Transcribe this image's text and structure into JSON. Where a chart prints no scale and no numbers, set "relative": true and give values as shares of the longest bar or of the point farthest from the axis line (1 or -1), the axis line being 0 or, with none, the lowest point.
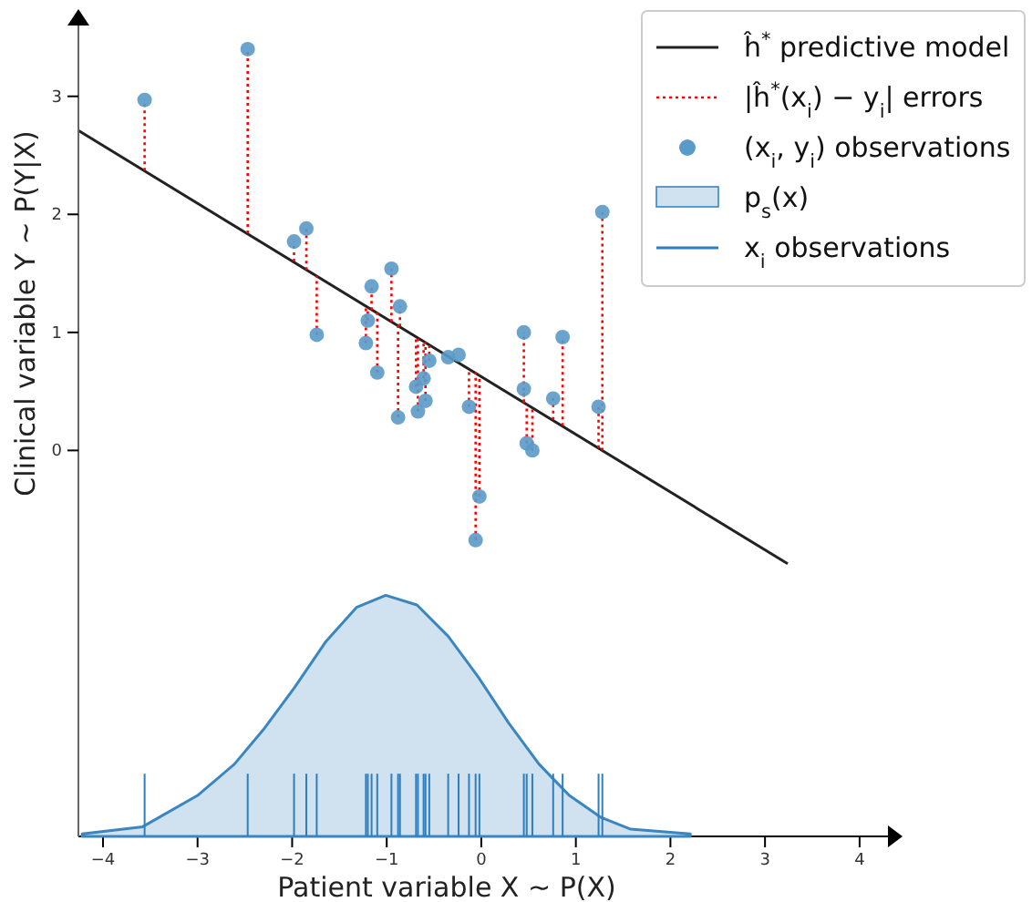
{
  "chart_data": [
    {
      "type": "scatter",
      "xlabel": "Patient variable X ~ P(X)",
      "ylabel": "Clinical variable Y ~ P(Y|X)",
      "annotations": [
        "|ĥ$^{*}$(x$_{i}$) − y$_{i}$| errors"
      ],
      "xlim": [
        -4.26,
        4.3
      ],
      "ylim": [
        -3.27,
        3.6
      ],
      "xticks": [
        {
          "value": -4,
          "label": "−4"
        },
        {
          "value": -3,
          "label": "−3"
        },
        {
          "value": -2,
          "label": "−2"
        },
        {
          "value": -1,
          "label": "−1"
        },
        0,
        1,
        2,
        3,
        4
      ],
      "yticks": [
        0,
        1,
        2,
        3
      ],
      "grid": false,
      "legend": "top right",
      "series": [
        {
          "type": "line",
          "name": "ĥ$^{*}$  predictive model",
          "color": "#222222",
          "line_style": "solid",
          "x": [
            -4.26,
            3.24
          ],
          "values": [
            2.71,
            -0.96
          ]
        },
        {
          "name": "(x$_{i}$, y$_{i}$) observations",
          "color": "#5a9ac8",
          "marker": "circle",
          "x": [
            -3.56,
            -2.47,
            -1.98,
            -1.85,
            -1.74,
            -1.22,
            -1.2,
            -1.16,
            -1.1,
            -0.95,
            -0.88,
            -0.86,
            -0.69,
            -0.67,
            -0.61,
            -0.59,
            -0.55,
            -0.35,
            -0.24,
            -0.13,
            -0.06,
            -0.02,
            0.45,
            0.45,
            0.48,
            0.54,
            0.76,
            0.86,
            1.24,
            1.28
          ],
          "values": [
            2.97,
            3.4,
            1.77,
            1.88,
            0.98,
            0.91,
            1.1,
            1.39,
            0.66,
            1.54,
            0.28,
            1.22,
            0.54,
            0.33,
            0.61,
            0.42,
            0.76,
            0.79,
            0.81,
            0.37,
            -0.76,
            -0.39,
            0.52,
            1.0,
            0.06,
            0.0,
            0.44,
            0.96,
            0.37,
            2.02
          ],
          "errors": [
            [
              2.37,
              2.97
            ],
            [
              1.84,
              3.4
            ],
            [
              1.6,
              1.77
            ],
            [
              1.53,
              1.88
            ],
            [
              0.98,
              1.48
            ],
            [
              0.91,
              1.22
            ],
            [
              1.1,
              1.21
            ],
            [
              1.19,
              1.39
            ],
            [
              0.66,
              1.17
            ],
            [
              1.09,
              1.54
            ],
            [
              0.28,
              1.06
            ],
            [
              1.05,
              1.22
            ],
            [
              0.54,
              0.96
            ],
            [
              0.33,
              0.95
            ],
            [
              0.61,
              0.93
            ],
            [
              0.42,
              0.92
            ],
            [
              0.76,
              0.9
            ],
            null,
            null,
            [
              0.37,
              0.69
            ],
            [
              -0.76,
              0.66
            ],
            [
              -0.39,
              0.64
            ],
            [
              0.41,
              0.52
            ],
            [
              0.4,
              1.0
            ],
            [
              0.06,
              0.39
            ],
            [
              0.0,
              0.36
            ],
            [
              0.26,
              0.44
            ],
            [
              0.21,
              0.96
            ],
            [
              0.02,
              0.37
            ],
            [
              0.0,
              2.02
            ]
          ]
        }
      ]
    },
    {
      "type": "area",
      "relative": true,
      "xlim": [
        -4.26,
        4.3
      ],
      "tick_labels": false,
      "legend": "top right",
      "series": [
        {
          "name": "p$_{s}$(x)",
          "color": "#3a86c0",
          "x": [
            -4.22,
            -3.58,
            -3.0,
            -2.61,
            -2.29,
            -1.97,
            -1.64,
            -1.32,
            -1.01,
            -0.68,
            -0.35,
            -0.03,
            0.29,
            0.61,
            0.93,
            1.26,
            1.58,
            2.21
          ],
          "values": [
            0.01,
            0.04,
            0.17,
            0.3,
            0.45,
            0.62,
            0.81,
            0.95,
            1,
            0.96,
            0.83,
            0.66,
            0.47,
            0.3,
            0.17,
            0.08,
            0.03,
            0.01
          ]
        },
        {
          "type": "bar",
          "name": "x$_{i}$ observations",
          "color": "#2f7fc0",
          "x": [
            -3.56,
            -2.47,
            -1.98,
            -1.85,
            -1.74,
            -1.22,
            -1.2,
            -1.16,
            -1.1,
            -0.95,
            -0.88,
            -0.86,
            -0.69,
            -0.67,
            -0.61,
            -0.59,
            -0.55,
            -0.35,
            -0.24,
            -0.13,
            -0.06,
            -0.02,
            0.45,
            0.48,
            0.54,
            0.76,
            0.86,
            1.24,
            1.28
          ],
          "values": [
            0.26,
            0.26,
            0.26,
            0.26,
            0.26,
            0.26,
            0.26,
            0.26,
            0.26,
            0.26,
            0.26,
            0.26,
            0.26,
            0.26,
            0.26,
            0.26,
            0.26,
            0.26,
            0.26,
            0.26,
            0.26,
            0.26,
            0.26,
            0.26,
            0.26,
            0.26,
            0.26,
            0.26,
            0.26
          ]
        }
      ]
    }
  ]
}
